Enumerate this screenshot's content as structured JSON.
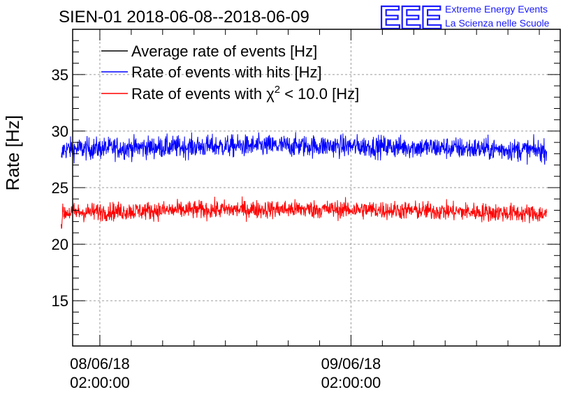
{
  "chart_data": {
    "type": "line",
    "title": "SIEN-01 2018-06-08--2018-06-09",
    "ylabel": "Rate [Hz]",
    "xlabel": "",
    "ylim": [
      11,
      39
    ],
    "yticks": [
      15,
      20,
      25,
      30,
      35
    ],
    "x_range_hours": [
      -2.6,
      44.0
    ],
    "x_ticks": [
      {
        "hour": 0,
        "date": "08/06/18",
        "time": "02:00:00"
      },
      {
        "hour": 24,
        "date": "09/06/18",
        "time": "02:00:00"
      }
    ],
    "grid": true,
    "legend_position": "top-left",
    "series": [
      {
        "name": "Average rate of events [Hz]",
        "color": "#000000",
        "values": []
      },
      {
        "name": "Rate of events with hits [Hz]",
        "color": "#0000ff",
        "x_start_hour": -3.7,
        "x_end_hour": 42.7,
        "mean": 28.4,
        "spread": 0.9,
        "points": 1500
      },
      {
        "name": "Rate of events with χ² < 10.0 [Hz]",
        "legend_prefix": "Rate of events with χ",
        "legend_sup": "2",
        "legend_suffix": " < 10.0 [Hz]",
        "color": "#ff0000",
        "x_start_hour": -3.7,
        "x_end_hour": 42.7,
        "mean": 22.8,
        "spread": 0.75,
        "points": 1500
      }
    ]
  },
  "logo": {
    "mark": "EEE",
    "line1": "Extreme Energy Events",
    "line2": "La Scienza nelle Scuole"
  }
}
